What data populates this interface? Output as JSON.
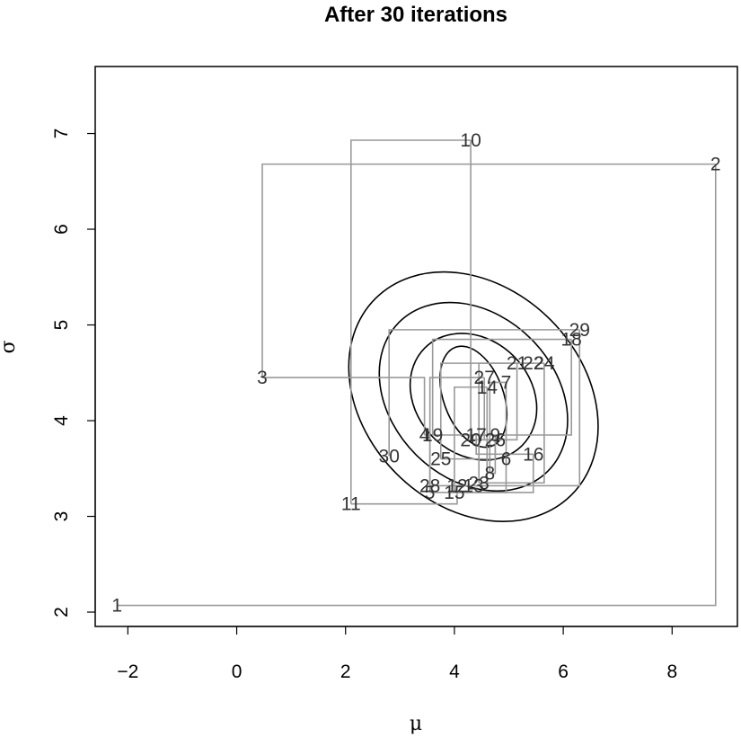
{
  "chart_data": {
    "type": "line",
    "title": "After 30 iterations",
    "xlabel": "μ",
    "ylabel": "σ",
    "xlim": [
      -2.6,
      9.2
    ],
    "ylim": [
      1.85,
      7.7
    ],
    "x_ticks": [
      -2,
      0,
      2,
      4,
      6,
      8
    ],
    "x_tick_labels": [
      "−2",
      "0",
      "2",
      "4",
      "6",
      "8"
    ],
    "y_ticks": [
      2,
      3,
      4,
      5,
      6,
      7
    ],
    "y_tick_labels": [
      "2",
      "3",
      "4",
      "5",
      "6",
      "7"
    ],
    "grid": false,
    "contours": [
      {
        "center": [
          4.35,
          4.25
        ],
        "rx": 0.55,
        "ry": 0.55,
        "angle": -20
      },
      {
        "center": [
          4.35,
          4.25
        ],
        "rx": 1.05,
        "ry": 0.72,
        "angle": -45
      },
      {
        "center": [
          4.35,
          4.25
        ],
        "rx": 1.5,
        "ry": 1.1,
        "angle": -45
      },
      {
        "center": [
          4.35,
          4.25
        ],
        "rx": 2.0,
        "ry": 1.45,
        "angle": -45
      }
    ],
    "iterations": [
      {
        "label": "1",
        "mu": -2.2,
        "sigma": 2.07
      },
      {
        "label": "2",
        "mu": 8.8,
        "sigma": 6.68
      },
      {
        "label": "3",
        "mu": 0.47,
        "sigma": 4.45
      },
      {
        "label": "4",
        "mu": 3.45,
        "sigma": 3.85
      },
      {
        "label": "5",
        "mu": 3.55,
        "sigma": 3.25
      },
      {
        "label": "6",
        "mu": 4.95,
        "sigma": 3.6
      },
      {
        "label": "7",
        "mu": 4.95,
        "sigma": 4.4
      },
      {
        "label": "8",
        "mu": 4.65,
        "sigma": 3.45
      },
      {
        "label": "9",
        "mu": 4.75,
        "sigma": 3.85
      },
      {
        "label": "10",
        "mu": 4.3,
        "sigma": 6.93
      },
      {
        "label": "11",
        "mu": 2.1,
        "sigma": 3.13
      },
      {
        "label": "12",
        "mu": 4.05,
        "sigma": 3.32
      },
      {
        "label": "13",
        "mu": 4.35,
        "sigma": 3.32
      },
      {
        "label": "14",
        "mu": 4.6,
        "sigma": 4.35
      },
      {
        "label": "15",
        "mu": 4.0,
        "sigma": 3.25
      },
      {
        "label": "16",
        "mu": 5.45,
        "sigma": 3.65
      },
      {
        "label": "17",
        "mu": 4.4,
        "sigma": 3.85
      },
      {
        "label": "18",
        "mu": 6.15,
        "sigma": 4.85
      },
      {
        "label": "19",
        "mu": 3.6,
        "sigma": 3.85
      },
      {
        "label": "20",
        "mu": 4.3,
        "sigma": 3.8
      },
      {
        "label": "21",
        "mu": 5.15,
        "sigma": 4.6
      },
      {
        "label": "22",
        "mu": 5.45,
        "sigma": 4.6
      },
      {
        "label": "23",
        "mu": 4.45,
        "sigma": 3.35
      },
      {
        "label": "24",
        "mu": 5.65,
        "sigma": 4.6
      },
      {
        "label": "25",
        "mu": 3.75,
        "sigma": 3.6
      },
      {
        "label": "26",
        "mu": 4.75,
        "sigma": 3.8
      },
      {
        "label": "27",
        "mu": 4.55,
        "sigma": 4.45
      },
      {
        "label": "28",
        "mu": 3.55,
        "sigma": 3.32
      },
      {
        "label": "29",
        "mu": 6.3,
        "sigma": 4.95
      },
      {
        "label": "30",
        "mu": 2.8,
        "sigma": 3.63
      }
    ]
  }
}
